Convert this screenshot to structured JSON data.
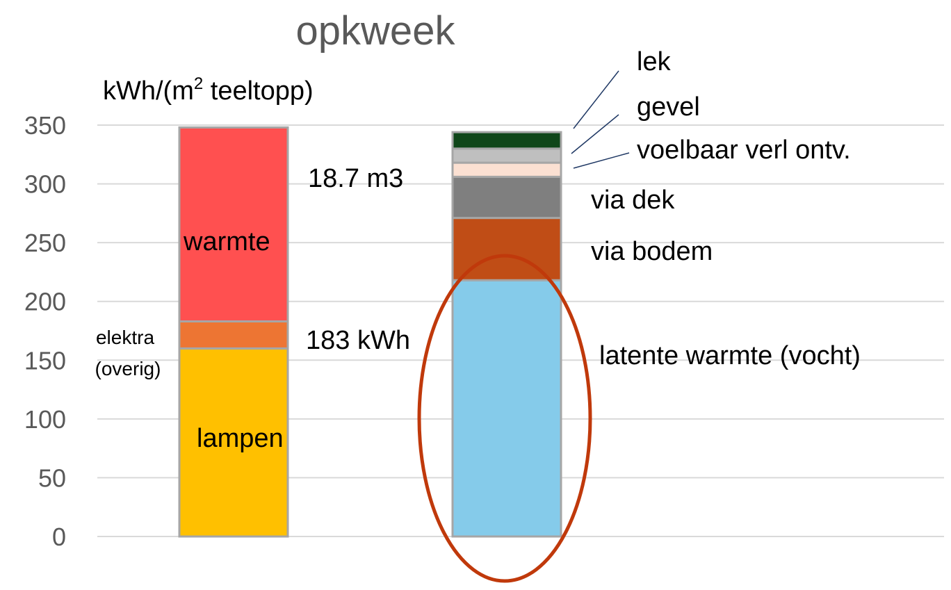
{
  "chart_data": {
    "type": "bar",
    "title": "opkweek",
    "ylabel_prefix": "kWh/(m",
    "ylabel_sup": "2",
    "ylabel_suffix": " teeltopp)",
    "ylim": [
      0,
      350
    ],
    "yticks": [
      0,
      50,
      100,
      150,
      200,
      250,
      300,
      350
    ],
    "grid": true,
    "colors": {
      "gridline": "#d9d9d9",
      "bar_border": "#a6a6a6",
      "ellipse": "#c0390b",
      "title": "#595959",
      "ticks": "#595959",
      "leader": "#1f3864"
    },
    "stacks": [
      {
        "segments": [
          {
            "name": "lampen",
            "value": 160,
            "color": "#ffc000"
          },
          {
            "name": "elektra (overig)",
            "value": 23,
            "color": "#ed7533"
          },
          {
            "name": "warmte",
            "value": 165,
            "color": "#ff5050"
          }
        ]
      },
      {
        "segments": [
          {
            "name": "latente warmte (vocht)",
            "value": 218,
            "color": "#85cbea"
          },
          {
            "name": "via bodem",
            "value": 53,
            "color": "#c04d16"
          },
          {
            "name": "via dek",
            "value": 35,
            "color": "#7f7f7f"
          },
          {
            "name": "voelbaar verl ontv.",
            "value": 12,
            "color": "#fbe0d2"
          },
          {
            "name": "gevel",
            "value": 12,
            "color": "#bfbfbf"
          },
          {
            "name": "lek",
            "value": 14,
            "color": "#0f4619"
          }
        ]
      }
    ],
    "annotations": {
      "warmte": "warmte",
      "lampen": "lampen",
      "elektra_line1": "elektra",
      "elektra_line2": "(overig)",
      "gas": "18.7 m3",
      "electricity": "183 kWh",
      "lek": "lek",
      "gevel": "gevel",
      "voelbaar": "voelbaar verl ontv.",
      "via_dek": "via dek",
      "via_bodem": "via bodem",
      "latente": "latente warmte (vocht)"
    }
  }
}
